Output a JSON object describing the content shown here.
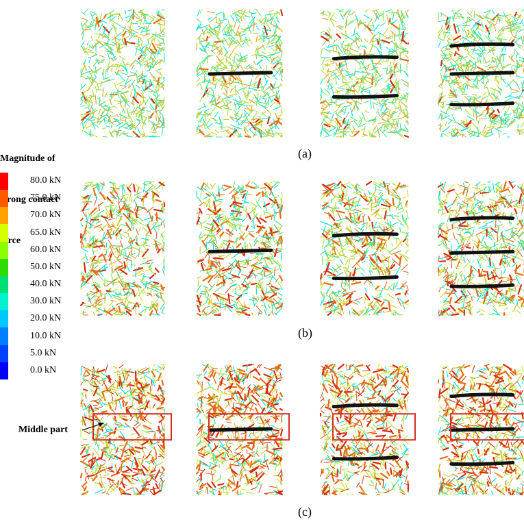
{
  "legend": {
    "title_lines": [
      "Magnitude of",
      "strong contact",
      "force"
    ],
    "entries": [
      {
        "label": "80.0 kN",
        "color": "#ff0000"
      },
      {
        "label": "75.0 kN",
        "color": "#ff5a00"
      },
      {
        "label": "70.0 kN",
        "color": "#ffa200"
      },
      {
        "label": "65.0 kN",
        "color": "#d6ff00"
      },
      {
        "label": "60.0 kN",
        "color": "#8cff00"
      },
      {
        "label": "50.0 kN",
        "color": "#2ddc00"
      },
      {
        "label": "40.0 kN",
        "color": "#00e070"
      },
      {
        "label": "30.0 kN",
        "color": "#00f0d0"
      },
      {
        "label": "20.0 kN",
        "color": "#00c8ff"
      },
      {
        "label": "10.0 kN",
        "color": "#0080ff"
      },
      {
        "label": "5.0 kN",
        "color": "#0040ff"
      },
      {
        "label": "0.0 kN",
        "color": "#0000ff"
      }
    ]
  },
  "rows": [
    {
      "caption": "(a)",
      "palette": [
        "#00e6e6",
        "#40e0a0",
        "#a0e040",
        "#c8d020",
        "#80d060",
        "#e6a020"
      ],
      "red_fraction": 0.04,
      "panels": [
        {
          "cracks": []
        },
        {
          "cracks": [
            0.5
          ]
        },
        {
          "cracks": [
            0.38,
            0.68
          ]
        },
        {
          "cracks": [
            0.28,
            0.5,
            0.74
          ]
        }
      ]
    },
    {
      "caption": "(b)",
      "palette": [
        "#00e0e0",
        "#a0e040",
        "#d0c020",
        "#e06020",
        "#40d080",
        "#c8e020"
      ],
      "red_fraction": 0.14,
      "panels": [
        {
          "cracks": []
        },
        {
          "cracks": [
            0.52
          ]
        },
        {
          "cracks": [
            0.4,
            0.72
          ]
        },
        {
          "cracks": [
            0.28,
            0.53,
            0.78
          ]
        }
      ]
    },
    {
      "caption": "(c)",
      "palette": [
        "#00e0e0",
        "#a0e040",
        "#d0c020",
        "#e06020",
        "#c83000",
        "#c8e020"
      ],
      "red_fraction": 0.22,
      "panels": [
        {
          "cracks": []
        },
        {
          "cracks": [
            0.5
          ]
        },
        {
          "cracks": [
            0.32,
            0.72
          ]
        },
        {
          "cracks": [
            0.24,
            0.5,
            0.76
          ]
        }
      ],
      "middle_box": {
        "from": 0.38,
        "to": 0.58,
        "color": "#d32f1e"
      }
    }
  ],
  "annotation": {
    "label": "Middle part"
  },
  "colors": {
    "crack": "#111111",
    "text": "#000000"
  }
}
